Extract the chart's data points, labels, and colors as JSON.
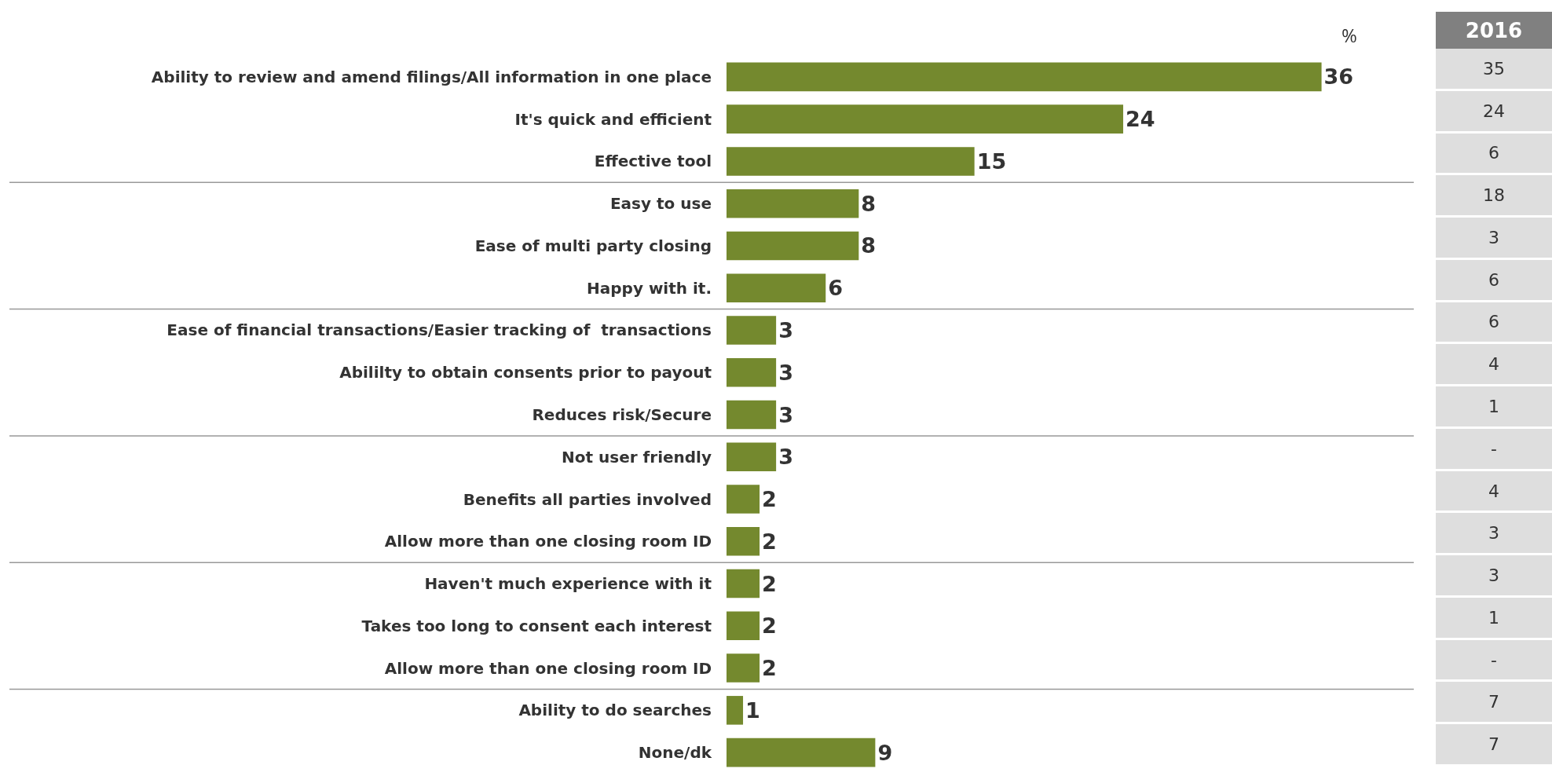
{
  "chart_data": [
    {
      "type": "bar",
      "orientation": "horizontal",
      "data_labels": true,
      "color": "#74892e",
      "categories": [
        "Ability to review and amend filings/All information in one place",
        "It's quick and efficient",
        "Effective tool",
        "Easy to use",
        "Ease of multi party closing",
        "Happy with it.",
        "Ease of financial transactions/Easier tracking of  transactions",
        "Abililty to obtain consents prior to payout",
        "Reduces risk/Secure",
        "Not user friendly",
        "Benefits all parties involved",
        "Allow more than one closing room ID",
        "Haven't much experience with it",
        "Takes too long to consent each interest",
        "Allow more than one closing room ID",
        "Ability to do searches",
        "None/dk"
      ],
      "values": [
        36,
        24,
        15,
        8,
        8,
        6,
        3,
        3,
        3,
        3,
        2,
        2,
        2,
        2,
        2,
        1,
        9
      ],
      "annotations": [
        "%"
      ]
    },
    {
      "type": "other",
      "title": "2016",
      "annotations": [
        "35",
        "24",
        "6",
        "18",
        "3",
        "6",
        "6",
        "4",
        "1",
        "-",
        "4",
        "3",
        "3",
        "1",
        "-",
        "7",
        "7"
      ]
    }
  ]
}
